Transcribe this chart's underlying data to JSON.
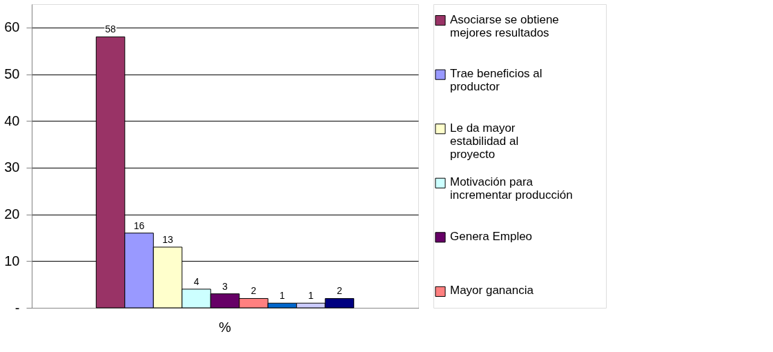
{
  "chart_data": {
    "type": "bar",
    "categories": [
      "%"
    ],
    "series": [
      {
        "name": "Asociarse se obtiene mejores resultados",
        "color": "#993366",
        "values": [
          58
        ]
      },
      {
        "name": "Trae beneficios al productor",
        "color": "#9999ff",
        "values": [
          16
        ]
      },
      {
        "name": "Le da mayor estabilidad al proyecto",
        "color": "#ffffcc",
        "values": [
          13
        ]
      },
      {
        "name": "Motivación para incrementar producción",
        "color": "#ccffff",
        "values": [
          4
        ]
      },
      {
        "name": "Genera Empleo",
        "color": "#660066",
        "values": [
          3
        ]
      },
      {
        "name": "Mayor ganancia",
        "color": "#ff8080",
        "values": [
          2
        ]
      },
      {
        "color": "#0066cc",
        "values": [
          1
        ]
      },
      {
        "color": "#ccccff",
        "values": [
          1
        ]
      },
      {
        "color": "#000080",
        "values": [
          2
        ]
      }
    ],
    "ylim": [
      0,
      65
    ],
    "yticks": [
      {
        "value": 0,
        "label": "-"
      },
      10,
      20,
      30,
      40,
      50,
      60
    ],
    "grid": "y",
    "legend": "right",
    "data_labels": true
  }
}
